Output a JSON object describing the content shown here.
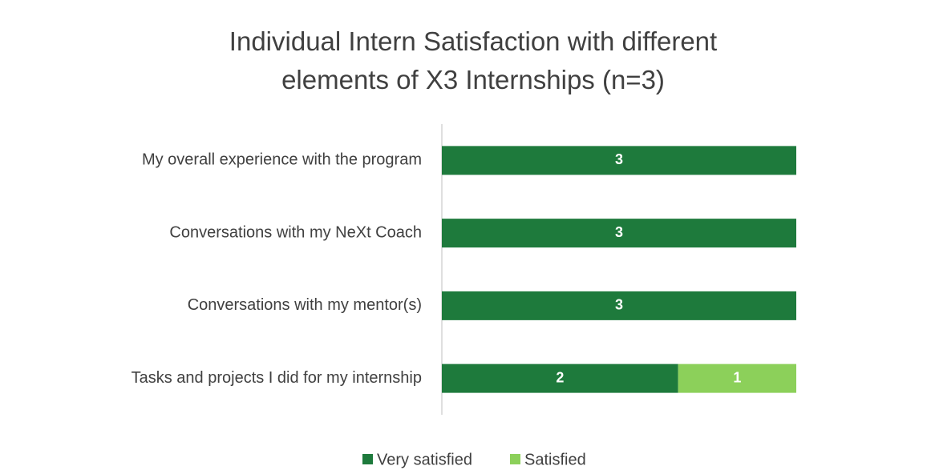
{
  "chart_data": {
    "type": "stacked-bar-horizontal",
    "title": "Individual Intern Satisfaction with different elements of X3 Internships (n=3)",
    "categories": [
      "My overall experience with the program",
      "Conversations with my NeXt Coach",
      "Conversations with my mentor(s)",
      "Tasks and projects I did for my internship"
    ],
    "series": [
      {
        "name": "Very satisfied",
        "color": "#1e7a3c",
        "values": [
          3,
          3,
          3,
          2
        ]
      },
      {
        "name": "Satisfied",
        "color": "#8cd05a",
        "values": [
          0,
          0,
          0,
          1
        ]
      }
    ],
    "xlim": [
      0,
      3
    ],
    "legend": "bottom"
  }
}
